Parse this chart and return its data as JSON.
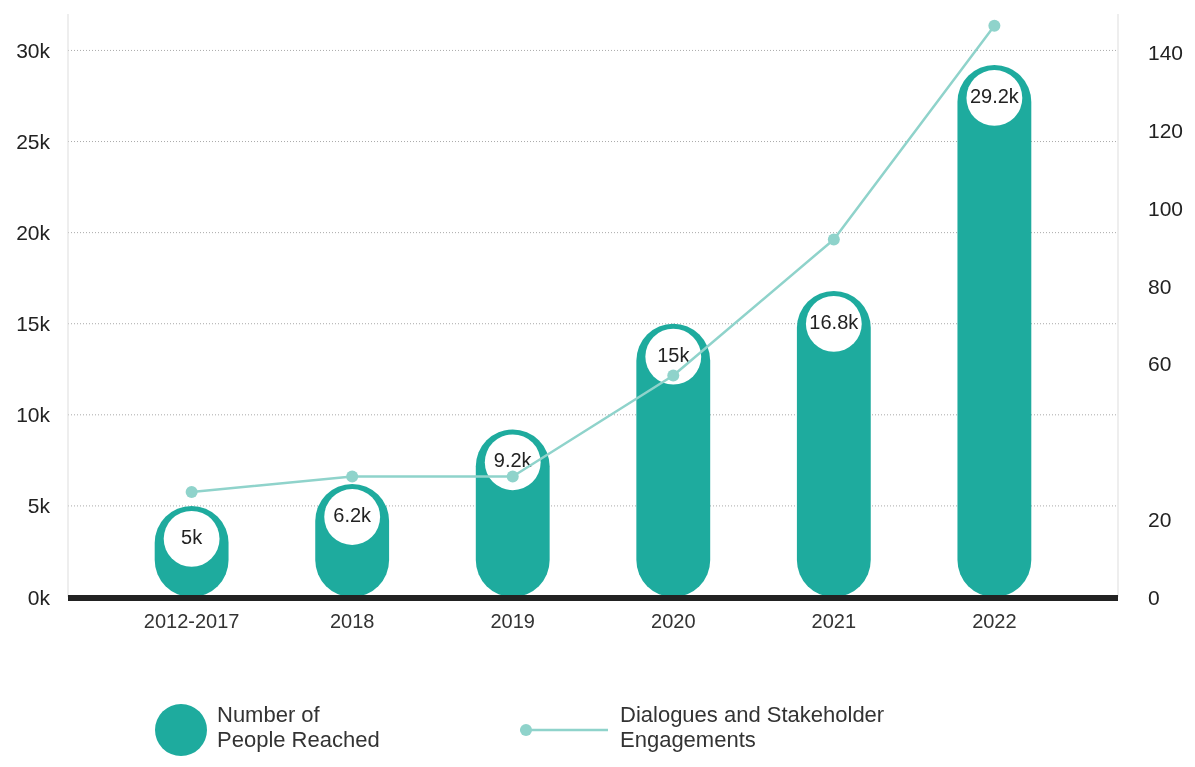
{
  "chart_data": {
    "type": "bar",
    "categories": [
      "2012-2017",
      "2018",
      "2019",
      "2020",
      "2021",
      "2022"
    ],
    "series": [
      {
        "name": "Number of People Reached",
        "color": "#1eab9e",
        "values": [
          5000,
          6200,
          9200,
          15000,
          16800,
          29200
        ],
        "value_labels": [
          "5k",
          "6.2k",
          "9.2k",
          "15k",
          "16.8k",
          "29.2k"
        ]
      },
      {
        "name": "Dialogues and Stakeholder Engagements",
        "type": "line",
        "axis": "y2",
        "color": "#8fd3cb",
        "values": [
          27,
          31,
          31,
          57,
          92,
          147
        ],
        "marker": "circle"
      }
    ],
    "ylim": [
      0,
      32000
    ],
    "yticks": [
      {
        "value": 0,
        "label": "0k"
      },
      {
        "value": 5000,
        "label": "5k"
      },
      {
        "value": 10000,
        "label": "10k"
      },
      {
        "value": 15000,
        "label": "15k"
      },
      {
        "value": 20000,
        "label": "20k"
      },
      {
        "value": 25000,
        "label": "25k"
      },
      {
        "value": 30000,
        "label": "30k"
      }
    ],
    "y2lim": [
      0,
      150
    ],
    "y2ticks": [
      0,
      20,
      60,
      80,
      100,
      120,
      140
    ],
    "grid": "y",
    "legend": "bottom"
  }
}
